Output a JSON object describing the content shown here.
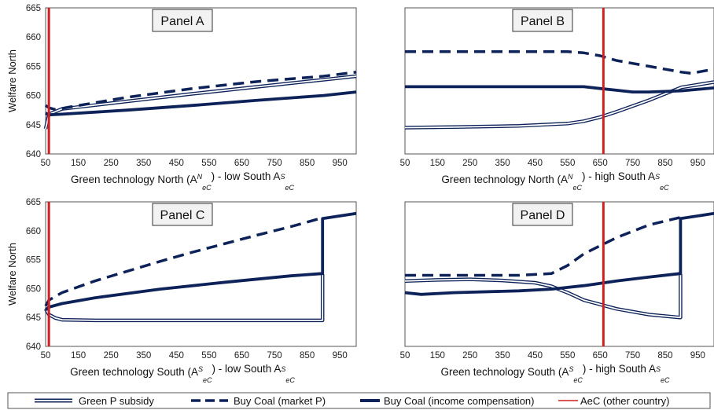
{
  "legend": [
    {
      "label": "Green P subsidy",
      "style": "double"
    },
    {
      "label": "Buy Coal (market P)",
      "style": "dashed"
    },
    {
      "label": "Buy Coal (income compensation)",
      "style": "thick"
    },
    {
      "label": "AeC (other country)",
      "style": "red"
    }
  ],
  "colors": {
    "series": "#0d2259",
    "reference": "#d11f1f"
  },
  "chart_data": [
    {
      "type": "line",
      "title": "Panel A",
      "xlabel": {
        "pre": "Green technology North (A",
        "sup": "N",
        "sub": "eC",
        "mid": ") - low South A",
        "sup2": "S",
        "sub2": "eC"
      },
      "ylabel": "Welfare North",
      "xlim": [
        50,
        1000
      ],
      "ylim": [
        640,
        665
      ],
      "xticks": [
        50,
        150,
        250,
        350,
        450,
        550,
        650,
        750,
        850,
        950
      ],
      "yticks": [
        640,
        645,
        650,
        655,
        660,
        665
      ],
      "vline": 60,
      "series": [
        {
          "name": "Green P subsidy",
          "style": "double",
          "x": [
            50,
            60,
            100,
            300,
            500,
            700,
            900,
            1000
          ],
          "y": [
            644.3,
            646.8,
            647.7,
            649.0,
            650.3,
            651.5,
            652.7,
            653.3
          ]
        },
        {
          "name": "Buy Coal (market P)",
          "style": "dashed",
          "x": [
            50,
            60,
            80,
            120,
            300,
            500,
            700,
            900,
            1000
          ],
          "y": [
            648.3,
            647.9,
            647.6,
            648.0,
            649.7,
            651.2,
            652.4,
            653.3,
            654.0
          ]
        },
        {
          "name": "Buy Coal (income compensation)",
          "style": "thick",
          "x": [
            50,
            60,
            100,
            300,
            500,
            700,
            900,
            1000
          ],
          "y": [
            647.0,
            646.7,
            646.8,
            647.5,
            648.3,
            649.2,
            650.0,
            650.6
          ]
        }
      ]
    },
    {
      "type": "line",
      "title": "Panel B",
      "xlabel": {
        "pre": "Green technology North (A",
        "sup": "N",
        "sub": "eC",
        "mid": ") - high South A",
        "sup2": "S",
        "sub2": "eC"
      },
      "ylabel": "",
      "xlim": [
        50,
        1000
      ],
      "ylim": [
        640,
        665
      ],
      "xticks": [
        50,
        150,
        250,
        350,
        450,
        550,
        650,
        750,
        850,
        950
      ],
      "yticks": [
        640,
        645,
        650,
        655,
        660,
        665
      ],
      "vline": 660,
      "series": [
        {
          "name": "Green P subsidy",
          "style": "double",
          "x": [
            50,
            200,
            400,
            550,
            600,
            650,
            700,
            800,
            900,
            1000
          ],
          "y": [
            644.5,
            644.6,
            644.8,
            645.2,
            645.6,
            646.3,
            647.2,
            649.2,
            651.4,
            652.3
          ]
        },
        {
          "name": "Buy Coal (market P)",
          "style": "dashed",
          "x": [
            50,
            200,
            400,
            550,
            600,
            650,
            700,
            800,
            900,
            930,
            1000
          ],
          "y": [
            657.5,
            657.5,
            657.5,
            657.5,
            657.3,
            656.8,
            656.0,
            655.0,
            654.0,
            653.8,
            654.5
          ]
        },
        {
          "name": "Buy Coal (income compensation)",
          "style": "thick",
          "x": [
            50,
            200,
            400,
            600,
            650,
            700,
            750,
            800,
            900,
            1000
          ],
          "y": [
            651.5,
            651.5,
            651.5,
            651.5,
            651.2,
            650.9,
            650.6,
            650.6,
            650.8,
            651.3
          ]
        }
      ]
    },
    {
      "type": "line",
      "title": "Panel C",
      "xlabel": {
        "pre": "Green technology South (A",
        "sup": "S",
        "sub": "eC",
        "mid": ") - low South A",
        "sup2": "S",
        "sub2": "eC"
      },
      "ylabel": "Welfare North",
      "xlim": [
        50,
        1000
      ],
      "ylim": [
        640,
        665
      ],
      "xticks": [
        50,
        150,
        250,
        350,
        450,
        550,
        650,
        750,
        850,
        950
      ],
      "yticks": [
        640,
        645,
        650,
        655,
        660,
        665
      ],
      "vline": 60,
      "series": [
        {
          "name": "Green P subsidy",
          "style": "double",
          "x": [
            50,
            60,
            80,
            100,
            200,
            400,
            600,
            800,
            895,
            897,
            897
          ],
          "y": [
            646.5,
            645.5,
            644.9,
            644.6,
            644.5,
            644.5,
            644.5,
            644.5,
            644.5,
            644.5,
            652.5
          ]
        },
        {
          "name": "Buy Coal (market P)",
          "style": "dashed",
          "x": [
            50,
            60,
            100,
            200,
            300,
            400,
            500,
            600,
            700,
            800,
            895
          ],
          "y": [
            647.0,
            648.0,
            649.3,
            651.3,
            653.0,
            654.7,
            656.3,
            657.8,
            659.3,
            660.7,
            662.2
          ]
        },
        {
          "name": "Buy Coal (income compensation)",
          "style": "thick",
          "x": [
            50,
            60,
            100,
            200,
            400,
            600,
            800,
            895,
            897,
            897,
            1000
          ],
          "y": [
            646.3,
            646.8,
            647.4,
            648.4,
            649.9,
            651.1,
            652.2,
            652.6,
            652.6,
            662.1,
            663.0
          ]
        }
      ]
    },
    {
      "type": "line",
      "title": "Panel D",
      "xlabel": {
        "pre": "Green technology South (A",
        "sup": "S",
        "sub": "eC",
        "mid": ") - high South A",
        "sup2": "S",
        "sub2": "eC"
      },
      "ylabel": "",
      "xlim": [
        50,
        1000
      ],
      "ylim": [
        640,
        665
      ],
      "xticks": [
        50,
        150,
        250,
        350,
        450,
        550,
        650,
        750,
        850,
        950
      ],
      "yticks": [
        640,
        645,
        650,
        655,
        660,
        665
      ],
      "vline": 660,
      "series": [
        {
          "name": "Green P subsidy",
          "style": "double",
          "x": [
            50,
            150,
            250,
            350,
            450,
            500,
            550,
            600,
            700,
            800,
            895,
            897,
            897
          ],
          "y": [
            651.3,
            651.5,
            651.6,
            651.4,
            651.0,
            650.4,
            649.3,
            648.0,
            646.5,
            645.5,
            645.0,
            645.0,
            652.5
          ]
        },
        {
          "name": "Buy Coal (market P)",
          "style": "dashed",
          "x": [
            50,
            200,
            400,
            500,
            550,
            600,
            700,
            800,
            895
          ],
          "y": [
            652.3,
            652.3,
            652.3,
            652.6,
            654.0,
            656.0,
            658.8,
            661.0,
            662.3
          ]
        },
        {
          "name": "Buy Coal (income compensation)",
          "style": "thick",
          "x": [
            50,
            100,
            200,
            400,
            500,
            600,
            700,
            800,
            895,
            897,
            897,
            1000
          ],
          "y": [
            649.3,
            649.0,
            649.3,
            649.6,
            649.9,
            650.5,
            651.3,
            652.0,
            652.6,
            652.6,
            662.1,
            663.0
          ]
        }
      ]
    }
  ]
}
